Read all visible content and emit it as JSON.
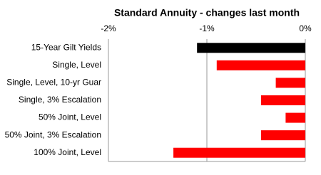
{
  "chart_data": {
    "type": "hbar",
    "title": "Standard Annuity  - changes last month",
    "categories": [
      "15-Year Gilt Yields",
      "Single, Level",
      "Single, Level, 10-yr Guar",
      "Single, 3% Escalation",
      "50% Joint, Level",
      "50% Joint, 3% Escalation",
      "100% Joint, Level"
    ],
    "values": [
      -1.1,
      -0.9,
      -0.3,
      -0.45,
      -0.2,
      -0.45,
      -1.34
    ],
    "colors": [
      "#000000",
      "#ff0000",
      "#ff0000",
      "#ff0000",
      "#ff0000",
      "#ff0000",
      "#ff0000"
    ],
    "xlim": [
      -2,
      0
    ],
    "xticks": [
      {
        "value": -2,
        "label": "-2%"
      },
      {
        "value": -1,
        "label": "-1%"
      },
      {
        "value": 0,
        "label": "0%"
      }
    ],
    "grid": true
  }
}
